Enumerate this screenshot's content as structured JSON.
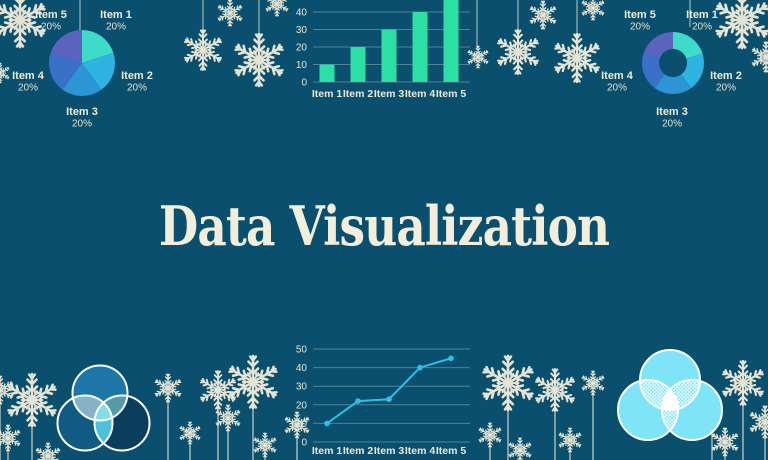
{
  "title": "Data Visualization",
  "background_color": "#0a506e",
  "text_color": "#f0ecdc",
  "decor": {
    "snowflake_color": "#ece8d8",
    "description": "cream snowflakes hanging from strings along the top and standing on stems along the bottom"
  },
  "chart_data": [
    {
      "id": "pie-top-left",
      "type": "pie",
      "position": "top-left",
      "categories": [
        "Item 1",
        "Item 2",
        "Item 3",
        "Item 4",
        "Item 5"
      ],
      "values": [
        20,
        20,
        20,
        20,
        20
      ],
      "value_labels": [
        "20%",
        "20%",
        "20%",
        "20%",
        "20%"
      ],
      "colors": [
        "#3edcc8",
        "#2fb3e0",
        "#2c95d6",
        "#3b70c9",
        "#5a64be"
      ],
      "legend_position": "around-slices"
    },
    {
      "id": "bar-top-center",
      "type": "bar",
      "position": "top-center",
      "categories": [
        "Item 1",
        "Item 2",
        "Item 3",
        "Item 4",
        "Item 5"
      ],
      "values": [
        10,
        20,
        30,
        40,
        50
      ],
      "ylim": [
        0,
        50
      ],
      "yticks_visible": [
        0,
        10,
        20,
        30,
        40
      ],
      "grid": true,
      "bar_color": "#2ce0a4",
      "note": "top of tallest bar and the 50 tick are cropped by the canvas edge"
    },
    {
      "id": "donut-top-right",
      "type": "pie",
      "subtype": "donut",
      "position": "top-right",
      "categories": [
        "Item 1",
        "Item 2",
        "Item 3",
        "Item 4",
        "Item 5"
      ],
      "values": [
        20,
        20,
        20,
        20,
        20
      ],
      "value_labels": [
        "20%",
        "20%",
        "20%",
        "20%",
        "20%"
      ],
      "colors": [
        "#3edcc8",
        "#2fb3e0",
        "#2c95d6",
        "#3b70c9",
        "#5a64be"
      ],
      "legend_position": "around-slices"
    },
    {
      "id": "venn-bottom-left",
      "type": "venn",
      "position": "bottom-left",
      "sets": 3,
      "circle_colors": [
        "#1d76a8",
        "#115a84",
        "#0b3d5f"
      ],
      "overlap_colors": {
        "top_left": "#85b2c6",
        "top_right": "#549ba8",
        "bottom": "#4fc0da",
        "center": "#86dcea"
      },
      "outline_color": "#ffffff"
    },
    {
      "id": "line-bottom-center",
      "type": "line",
      "position": "bottom-center",
      "categories": [
        "Item 1",
        "Item 2",
        "Item 3",
        "Item 4",
        "Item 5"
      ],
      "values": [
        10,
        22,
        23,
        40,
        45
      ],
      "ylim": [
        0,
        50
      ],
      "yticks_visible": [
        0,
        10,
        20,
        30,
        40,
        50
      ],
      "grid": true,
      "line_color": "#2cc2e8",
      "markers": true
    },
    {
      "id": "venn-bottom-right",
      "type": "venn",
      "position": "bottom-right",
      "sets": 3,
      "circle_colors": [
        "#7fe4f7",
        "#7fe4f7",
        "#7fe4f7"
      ],
      "overlap_style": "white-crosshatch",
      "center_style": "solid-white",
      "outline_color": "#ffffff"
    }
  ]
}
